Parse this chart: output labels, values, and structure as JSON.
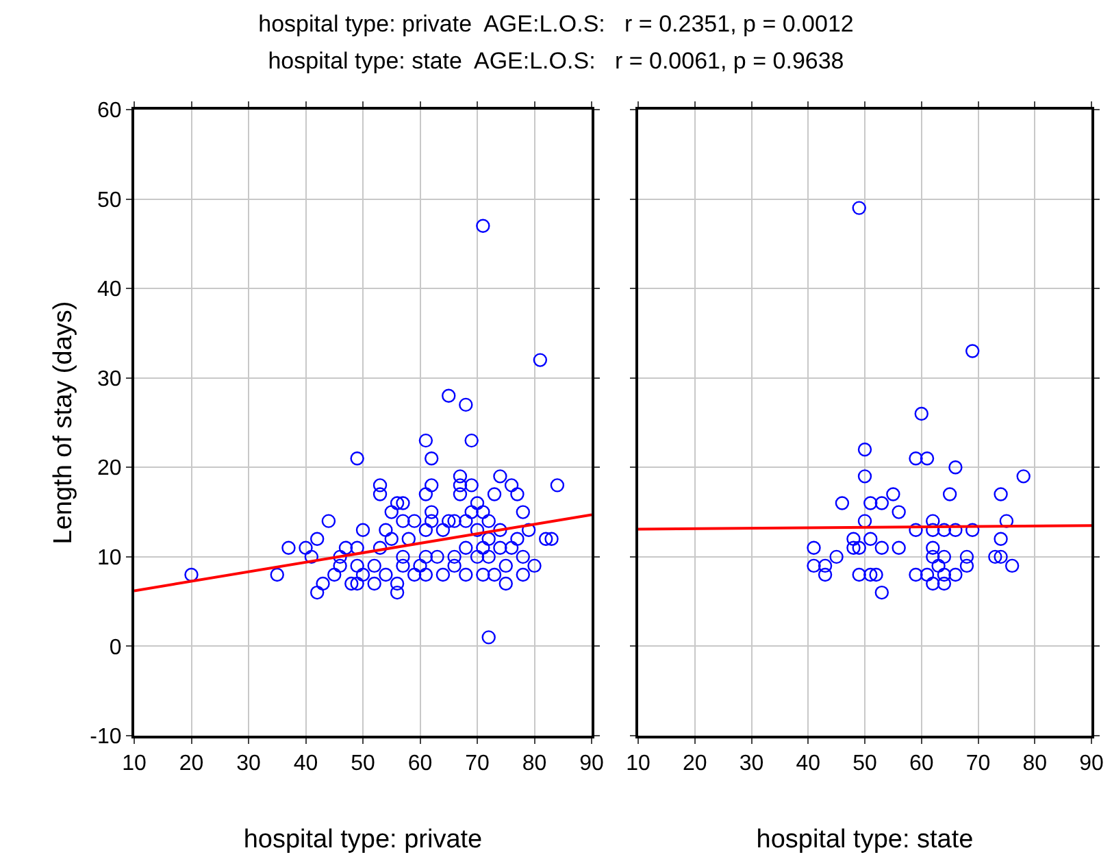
{
  "chart_data": [
    {
      "type": "scatter",
      "title": "hospital type: private  AGE:L.O.S:   r = 0.2351, p = 0.0012",
      "subtitle": "hospital type: state  AGE:L.O.S:   r = 0.0061, p = 0.9638",
      "xlabel": "hospital type: private",
      "ylabel": "Length of stay (days)",
      "xlim": [
        10,
        90
      ],
      "xticks": [
        10,
        20,
        30,
        40,
        50,
        60,
        70,
        80,
        90
      ],
      "ylim": [
        -10,
        60
      ],
      "yticks": [
        -10,
        0,
        10,
        20,
        30,
        40,
        50,
        60
      ],
      "grid": true,
      "marker": "circle",
      "series": [
        {
          "color": "#0000ff",
          "x": [
            20,
            35,
            37,
            40,
            41,
            42,
            44,
            42,
            43,
            45,
            46,
            47,
            46,
            49,
            50,
            48,
            49,
            49,
            49,
            50,
            52,
            52,
            53,
            53,
            53,
            54,
            54,
            55,
            55,
            56,
            57,
            56,
            56,
            57,
            57,
            57,
            58,
            59,
            59,
            60,
            61,
            62,
            61,
            62,
            62,
            62,
            61,
            61,
            61,
            63,
            64,
            64,
            65,
            65,
            66,
            66,
            66,
            67,
            67,
            67,
            68,
            68,
            68,
            68,
            69,
            69,
            69,
            70,
            70,
            70,
            71,
            71,
            71,
            71,
            72,
            72,
            72,
            73,
            73,
            74,
            74,
            74,
            75,
            75,
            76,
            76,
            77,
            77,
            78,
            78,
            78,
            79,
            80,
            81,
            82,
            83,
            84,
            72
          ],
          "values": [
            8,
            8,
            11,
            11,
            10,
            12,
            14,
            6,
            7,
            8,
            10,
            11,
            9,
            21,
            13,
            7,
            7,
            9,
            11,
            8,
            7,
            9,
            18,
            17,
            11,
            13,
            8,
            15,
            12,
            16,
            16,
            6,
            7,
            14,
            10,
            9,
            12,
            14,
            8,
            9,
            23,
            21,
            17,
            18,
            15,
            14,
            13,
            10,
            8,
            10,
            13,
            8,
            28,
            14,
            14,
            10,
            9,
            19,
            18,
            17,
            27,
            14,
            11,
            8,
            23,
            18,
            15,
            16,
            13,
            10,
            47,
            15,
            11,
            8,
            14,
            12,
            10,
            17,
            8,
            19,
            13,
            11,
            9,
            7,
            18,
            11,
            17,
            12,
            15,
            10,
            8,
            13,
            9,
            32,
            12,
            12,
            18,
            1
          ]
        },
        {
          "type": "line",
          "color": "#ff0000",
          "x": [
            10,
            90
          ],
          "values": [
            6.2,
            14.7
          ],
          "marker": "none"
        }
      ]
    },
    {
      "type": "scatter",
      "xlabel": "hospital type: state",
      "xlim": [
        10,
        90
      ],
      "xticks": [
        10,
        20,
        30,
        40,
        50,
        60,
        70,
        80,
        90
      ],
      "ylim": [
        -10,
        60
      ],
      "yticks": [
        -10,
        0,
        10,
        20,
        30,
        40,
        50,
        60
      ],
      "tick_labels": "x",
      "grid": true,
      "marker": "circle",
      "series": [
        {
          "color": "#0000ff",
          "x": [
            49,
            69,
            60,
            50,
            59,
            61,
            66,
            78,
            50,
            46,
            51,
            53,
            55,
            56,
            65,
            74,
            50,
            62,
            75,
            59,
            62,
            64,
            66,
            69,
            48,
            51,
            74,
            41,
            48,
            49,
            53,
            56,
            62,
            45,
            62,
            64,
            68,
            73,
            74,
            41,
            43,
            63,
            68,
            76,
            43,
            49,
            51,
            52,
            59,
            61,
            64,
            66,
            62,
            64,
            53
          ],
          "values": [
            49,
            33,
            26,
            22,
            21,
            21,
            20,
            19,
            19,
            16,
            16,
            16,
            17,
            15,
            17,
            17,
            14,
            14,
            14,
            13,
            13,
            13,
            13,
            13,
            12,
            12,
            12,
            11,
            11,
            11,
            11,
            11,
            11,
            10,
            10,
            10,
            10,
            10,
            10,
            9,
            9,
            9,
            9,
            9,
            8,
            8,
            8,
            8,
            8,
            8,
            8,
            8,
            7,
            7,
            6
          ]
        },
        {
          "type": "line",
          "color": "#ff0000",
          "x": [
            10,
            90
          ],
          "values": [
            13.1,
            13.5
          ],
          "marker": "none"
        }
      ]
    }
  ]
}
